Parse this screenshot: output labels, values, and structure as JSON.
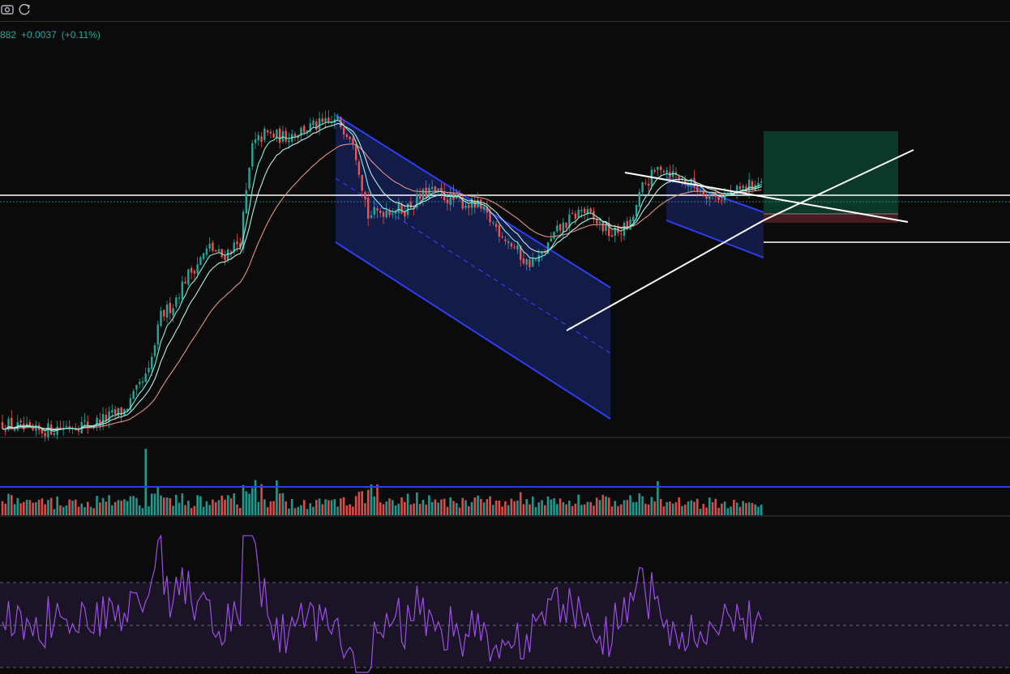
{
  "toolbar": {
    "items": [
      {
        "name": "screenshot-icon"
      },
      {
        "name": "refresh-icon"
      }
    ]
  },
  "quote": {
    "last": "882",
    "change": "+0.0037",
    "change_pct": "(+0.11%)"
  },
  "colors": {
    "background": "#0b0b0c",
    "up": "#26a69a",
    "down": "#ef5350",
    "channel": "#2e3df0",
    "channel_fill": "#1b2a7a",
    "ma_fast": "#7ef2d8",
    "ma_mid": "#bfeee4",
    "ma_slow": "#e0908a",
    "rsi": "#9c4fe6",
    "trend": "#ffffff",
    "target": "#0d3b2c",
    "stop": "#4a1d22"
  },
  "chart_data": {
    "type": "candlestick",
    "title": "",
    "candles": 250,
    "anchors": [
      [
        0,
        0.04
      ],
      [
        4,
        0.03
      ],
      [
        10,
        0.01
      ],
      [
        20,
        0.03
      ],
      [
        30,
        0.04
      ],
      [
        40,
        0.08
      ],
      [
        48,
        0.2
      ],
      [
        52,
        0.38
      ],
      [
        56,
        0.42
      ],
      [
        60,
        0.5
      ],
      [
        68,
        0.6
      ],
      [
        72,
        0.57
      ],
      [
        78,
        0.62
      ],
      [
        82,
        0.92
      ],
      [
        86,
        0.96
      ],
      [
        92,
        0.95
      ],
      [
        100,
        0.98
      ],
      [
        110,
        1.0
      ],
      [
        115,
        0.95
      ],
      [
        120,
        0.7
      ],
      [
        126,
        0.72
      ],
      [
        132,
        0.72
      ],
      [
        140,
        0.78
      ],
      [
        148,
        0.75
      ],
      [
        156,
        0.73
      ],
      [
        166,
        0.62
      ],
      [
        172,
        0.55
      ],
      [
        176,
        0.56
      ],
      [
        182,
        0.65
      ],
      [
        190,
        0.72
      ],
      [
        200,
        0.64
      ],
      [
        206,
        0.67
      ],
      [
        210,
        0.79
      ],
      [
        216,
        0.86
      ],
      [
        222,
        0.82
      ],
      [
        228,
        0.79
      ],
      [
        234,
        0.76
      ],
      [
        240,
        0.77
      ],
      [
        246,
        0.8
      ],
      [
        250,
        0.81
      ]
    ],
    "price_scale": {
      "low": 0.0,
      "high": 1.0,
      "units": "normalized"
    },
    "overlays": [
      "moving-average-fast",
      "moving-average-mid",
      "moving-average-slow"
    ],
    "annotations": [
      "descending-channel",
      "ascending-trendline",
      "descending-trendline",
      "horizontal-resistance",
      "horizontal-support",
      "small-descending-channel",
      "long-position-box"
    ],
    "volume": {
      "shown": true,
      "threshold_line": true
    },
    "rsi": {
      "shown": true,
      "bands": [
        "overbought",
        "mid",
        "oversold"
      ]
    }
  }
}
